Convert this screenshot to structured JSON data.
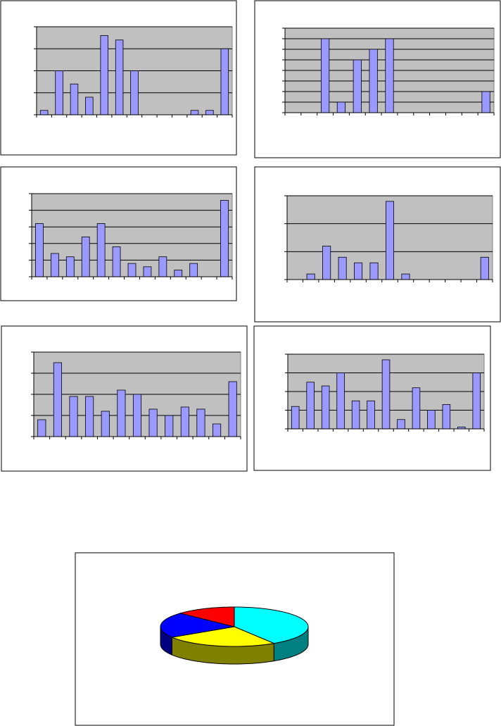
{
  "chart_data": [
    {
      "type": "bar",
      "categories": [
        null,
        null,
        null,
        null,
        null,
        null,
        null,
        null,
        null,
        null,
        null,
        null,
        null
      ],
      "values": [
        0.2,
        2,
        1.4,
        0.8,
        3.6,
        3.4,
        2,
        0,
        0,
        0,
        0.2,
        0.2,
        3
      ],
      "color": "#9999ff",
      "ylim": [
        0,
        4
      ],
      "yticks": [
        0,
        1,
        2,
        3,
        4
      ],
      "grid": true
    },
    {
      "type": "bar",
      "categories": [
        null,
        null,
        null,
        null,
        null,
        null,
        null,
        null,
        null,
        null,
        null,
        null,
        null
      ],
      "values": [
        0,
        0,
        7,
        1,
        5,
        6,
        7,
        0,
        0,
        0,
        0,
        0,
        2
      ],
      "color": "#9999ff",
      "ylim": [
        0,
        8
      ],
      "yticks": [
        0,
        1,
        2,
        3,
        4,
        5,
        6,
        7,
        8
      ],
      "grid": true
    },
    {
      "type": "bar",
      "categories": [
        null,
        null,
        null,
        null,
        null,
        null,
        null,
        null,
        null,
        null,
        null,
        null,
        null
      ],
      "values": [
        3.2,
        1.4,
        1.2,
        2.4,
        3.2,
        1.8,
        0.8,
        0.6,
        1.2,
        0.4,
        0.8,
        0,
        4.6
      ],
      "color": "#9999ff",
      "ylim": [
        0,
        5
      ],
      "yticks": [
        0,
        1,
        2,
        3,
        4,
        5
      ],
      "grid": true
    },
    {
      "type": "bar",
      "categories": [
        null,
        null,
        null,
        null,
        null,
        null,
        null,
        null,
        null,
        null,
        null,
        null,
        null
      ],
      "values": [
        0,
        0.2,
        1.2,
        0.8,
        0.6,
        0.6,
        2.8,
        0.2,
        0,
        0,
        0,
        0,
        0.8
      ],
      "color": "#9999ff",
      "ylim": [
        0,
        3
      ],
      "yticks": [
        0,
        1,
        2,
        3
      ],
      "grid": true
    },
    {
      "type": "bar",
      "categories": [
        null,
        null,
        null,
        null,
        null,
        null,
        null,
        null,
        null,
        null,
        null,
        null,
        null
      ],
      "values": [
        0.8,
        3.5,
        1.9,
        1.9,
        1.2,
        2.2,
        2,
        1.3,
        1,
        1.4,
        1.3,
        0.6,
        2.6
      ],
      "color": "#9999ff",
      "ylim": [
        0,
        4
      ],
      "yticks": [
        0,
        1,
        2,
        3,
        4
      ],
      "grid": true
    },
    {
      "type": "bar",
      "categories": [
        null,
        null,
        null,
        null,
        null,
        null,
        null,
        null,
        null,
        null,
        null,
        null,
        null
      ],
      "values": [
        1.2,
        2.5,
        2.3,
        3,
        1.5,
        1.5,
        3.7,
        0.5,
        2.2,
        1,
        1.3,
        0.1,
        3
      ],
      "color": "#9999ff",
      "ylim": [
        0,
        4
      ],
      "yticks": [
        0,
        1,
        2,
        3,
        4
      ],
      "grid": true
    },
    {
      "type": "pie",
      "values": [
        41,
        25,
        21,
        13
      ],
      "colors": [
        "#00ffff",
        "#ffff00",
        "#0000ff",
        "#ff0000"
      ]
    }
  ]
}
